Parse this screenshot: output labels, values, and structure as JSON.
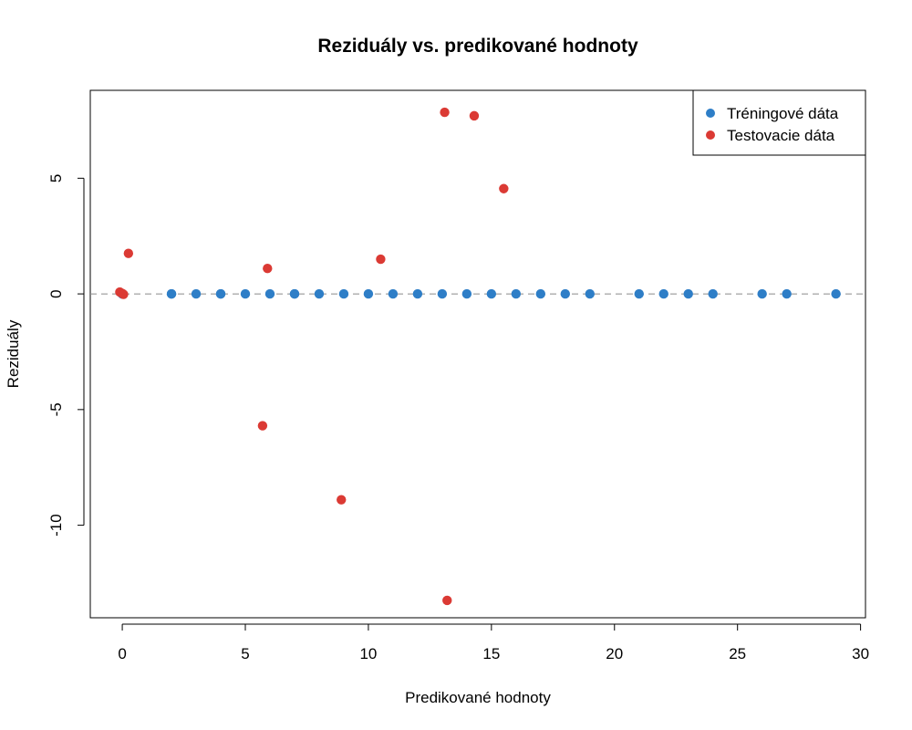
{
  "chart_data": {
    "type": "scatter",
    "title": "Reziduály vs. predikované hodnoty",
    "xlabel": "Predikované hodnoty",
    "ylabel": "Reziduály",
    "xlim": [
      -1.3,
      30.2
    ],
    "ylim": [
      -14.0,
      8.8
    ],
    "x_ticks": [
      0,
      5,
      10,
      15,
      20,
      25,
      30
    ],
    "y_ticks": [
      -10,
      -5,
      0,
      5
    ],
    "reference_line": {
      "y": 0,
      "style": "dashed",
      "color": "#8a8a8a"
    },
    "grid": false,
    "legend_position": "top-right",
    "series": [
      {
        "name": "Tréningové dáta",
        "color": "#2e7ec7",
        "points": [
          {
            "x": 0,
            "y": 0
          },
          {
            "x": 0,
            "y": 0
          },
          {
            "x": 0,
            "y": 0
          },
          {
            "x": 2,
            "y": 0
          },
          {
            "x": 2,
            "y": 0
          },
          {
            "x": 3,
            "y": 0
          },
          {
            "x": 4,
            "y": 0
          },
          {
            "x": 4,
            "y": 0
          },
          {
            "x": 5,
            "y": 0
          },
          {
            "x": 6,
            "y": 0
          },
          {
            "x": 7,
            "y": 0
          },
          {
            "x": 7,
            "y": 0
          },
          {
            "x": 8,
            "y": 0
          },
          {
            "x": 9,
            "y": 0
          },
          {
            "x": 10,
            "y": 0
          },
          {
            "x": 11,
            "y": 0
          },
          {
            "x": 12,
            "y": 0
          },
          {
            "x": 13,
            "y": 0
          },
          {
            "x": 14,
            "y": 0
          },
          {
            "x": 15,
            "y": 0
          },
          {
            "x": 16,
            "y": 0
          },
          {
            "x": 17,
            "y": 0
          },
          {
            "x": 18,
            "y": 0
          },
          {
            "x": 19,
            "y": 0
          },
          {
            "x": 21,
            "y": 0
          },
          {
            "x": 22,
            "y": 0
          },
          {
            "x": 23,
            "y": 0
          },
          {
            "x": 24,
            "y": 0
          },
          {
            "x": 26,
            "y": 0
          },
          {
            "x": 27,
            "y": 0
          },
          {
            "x": 29,
            "y": 0
          }
        ]
      },
      {
        "name": "Testovacie dáta",
        "color": "#db3a34",
        "points": [
          {
            "x": -0.1,
            "y": 0.08
          },
          {
            "x": 0.0,
            "y": 0.02
          },
          {
            "x": 0.05,
            "y": -0.02
          },
          {
            "x": 0.25,
            "y": 1.75
          },
          {
            "x": 5.7,
            "y": -5.7
          },
          {
            "x": 5.9,
            "y": 1.1
          },
          {
            "x": 8.9,
            "y": -8.9
          },
          {
            "x": 10.5,
            "y": 1.5
          },
          {
            "x": 13.1,
            "y": 7.85
          },
          {
            "x": 13.2,
            "y": -13.25
          },
          {
            "x": 14.3,
            "y": 7.7
          },
          {
            "x": 15.5,
            "y": 4.55
          }
        ]
      }
    ]
  }
}
